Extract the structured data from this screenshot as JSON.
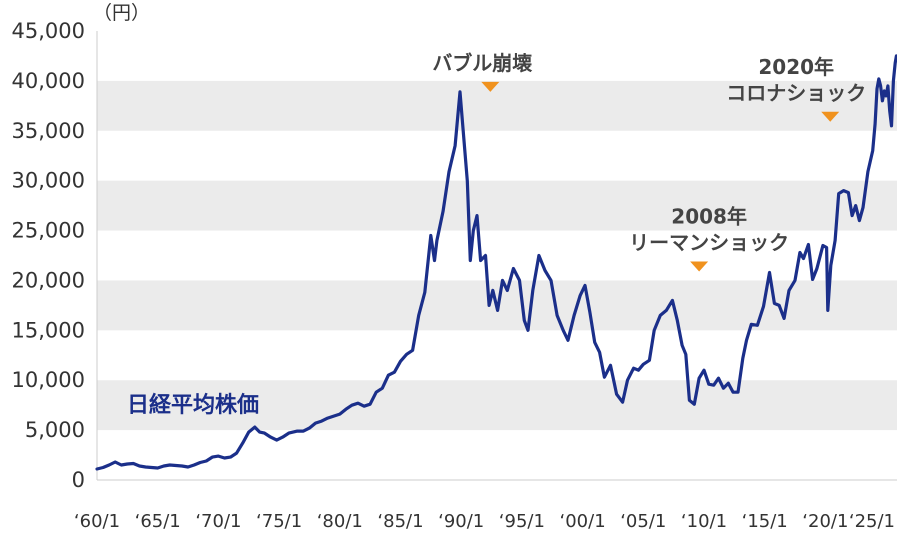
{
  "chart_data": {
    "type": "line",
    "unit_label": "（円）",
    "series_label": "日経平均株価",
    "ylim": [
      0,
      45000
    ],
    "y_ticks": [
      0,
      5000,
      10000,
      15000,
      20000,
      25000,
      30000,
      35000,
      40000,
      45000
    ],
    "y_tick_labels": [
      "0",
      "5,000",
      "10,000",
      "15,000",
      "20,000",
      "25,000",
      "30,000",
      "35,000",
      "40,000",
      "45,000"
    ],
    "x_range": [
      1960.0,
      2025.9
    ],
    "x_ticks": [
      1960,
      1965,
      1970,
      1975,
      1980,
      1985,
      1990,
      1995,
      2000,
      2005,
      2010,
      2015,
      2020,
      2025
    ],
    "x_tick_labels": [
      "‘60/1",
      "‘65/1",
      "‘70/1",
      "‘75/1",
      "‘80/1",
      "‘85/1",
      "‘90/1",
      "‘95/1",
      "‘00/1",
      "‘05/1",
      "‘10/1",
      "‘15/1",
      "‘20/1",
      "‘25/1"
    ],
    "grid": "alternating horizontal bands",
    "line_color": "#1b2f8a",
    "marker_color": "#f0921e",
    "band_color": "#ebebeb",
    "annotations": [
      {
        "lines": [
          "バブル崩壊"
        ],
        "x": 1992.4,
        "marker_y": 39500
      },
      {
        "lines": [
          "2008年",
          "リーマンショック"
        ],
        "x": 2009.6,
        "marker_y": 21500
      },
      {
        "lines": [
          "2020年",
          "コロナショック"
        ],
        "x": 2020.4,
        "marker_y": 36500
      }
    ],
    "series": [
      {
        "x": [
          1960.0,
          1960.5,
          1961.0,
          1961.5,
          1962.0,
          1962.5,
          1963.0,
          1963.5,
          1964.0,
          1964.5,
          1965.0,
          1965.5,
          1966.0,
          1966.5,
          1967.0,
          1967.5,
          1968.0,
          1968.5,
          1969.0,
          1969.5,
          1970.0,
          1970.5,
          1971.0,
          1971.5,
          1972.0,
          1972.5,
          1973.0,
          1973.4,
          1973.8,
          1974.3,
          1974.8,
          1975.3,
          1975.8,
          1976.5,
          1977.0,
          1977.5,
          1978.0,
          1978.5,
          1979.0,
          1979.5,
          1980.0,
          1980.5,
          1981.0,
          1981.5,
          1982.0,
          1982.5,
          1983.0,
          1983.5,
          1984.0,
          1984.5,
          1985.0,
          1985.5,
          1986.0,
          1986.5,
          1987.0,
          1987.5,
          1987.8,
          1988.0,
          1988.5,
          1989.0,
          1989.5,
          1989.9,
          1990.2,
          1990.5,
          1990.75,
          1991.0,
          1991.3,
          1991.6,
          1992.0,
          1992.3,
          1992.6,
          1993.0,
          1993.4,
          1993.8,
          1994.3,
          1994.8,
          1995.2,
          1995.5,
          1995.9,
          1996.4,
          1996.9,
          1997.4,
          1997.9,
          1998.4,
          1998.8,
          1999.3,
          1999.8,
          2000.2,
          2000.6,
          2001.0,
          2001.4,
          2001.8,
          2002.3,
          2002.8,
          2003.3,
          2003.7,
          2004.2,
          2004.6,
          2005.0,
          2005.5,
          2005.9,
          2006.4,
          2006.9,
          2007.4,
          2007.8,
          2008.2,
          2008.5,
          2008.8,
          2009.2,
          2009.6,
          2010.0,
          2010.4,
          2010.8,
          2011.2,
          2011.6,
          2012.0,
          2012.4,
          2012.8,
          2013.2,
          2013.5,
          2013.9,
          2014.4,
          2014.9,
          2015.4,
          2015.8,
          2016.2,
          2016.6,
          2017.0,
          2017.5,
          2017.9,
          2018.2,
          2018.6,
          2018.95,
          2019.3,
          2019.8,
          2020.1,
          2020.2,
          2020.45,
          2020.8,
          2021.1,
          2021.5,
          2021.9,
          2022.2,
          2022.5,
          2022.8,
          2023.1,
          2023.5,
          2023.9,
          2024.1,
          2024.25,
          2024.4,
          2024.55,
          2024.7,
          2024.85,
          2025.0,
          2025.15,
          2025.3,
          2025.45,
          2025.6,
          2025.75,
          2025.85
        ],
        "values": [
          1100,
          1250,
          1500,
          1800,
          1500,
          1600,
          1650,
          1400,
          1300,
          1250,
          1200,
          1400,
          1500,
          1450,
          1400,
          1300,
          1500,
          1750,
          1900,
          2300,
          2400,
          2200,
          2300,
          2700,
          3700,
          4800,
          5300,
          4800,
          4700,
          4300,
          4000,
          4300,
          4700,
          4900,
          4900,
          5200,
          5700,
          5900,
          6200,
          6400,
          6600,
          7100,
          7500,
          7700,
          7400,
          7600,
          8800,
          9200,
          10500,
          10800,
          11900,
          12600,
          13000,
          16500,
          18800,
          24500,
          22000,
          24000,
          26900,
          30900,
          33500,
          38900,
          34500,
          30000,
          22000,
          25000,
          26500,
          22000,
          22500,
          17500,
          19000,
          17000,
          20000,
          19000,
          21200,
          20000,
          16000,
          15000,
          19000,
          22500,
          21000,
          20000,
          16500,
          15000,
          14000,
          16500,
          18500,
          19500,
          16800,
          13800,
          12800,
          10300,
          11500,
          8600,
          7800,
          10000,
          11200,
          11000,
          11600,
          12000,
          15000,
          16500,
          17000,
          18000,
          16000,
          13500,
          12600,
          8000,
          7600,
          10200,
          11000,
          9600,
          9500,
          10200,
          9200,
          9700,
          8800,
          8800,
          12200,
          14000,
          15600,
          15500,
          17400,
          20800,
          17700,
          17500,
          16200,
          19000,
          20000,
          22800,
          22200,
          23600,
          20100,
          21200,
          23500,
          23300,
          17000,
          21500,
          24000,
          28700,
          29000,
          28800,
          26500,
          27500,
          26000,
          27300,
          30900,
          33000,
          35700,
          39200,
          40200,
          39500,
          38000,
          39000,
          38500,
          39500,
          37000,
          35500,
          40000,
          41800,
          42500
        ]
      }
    ]
  }
}
